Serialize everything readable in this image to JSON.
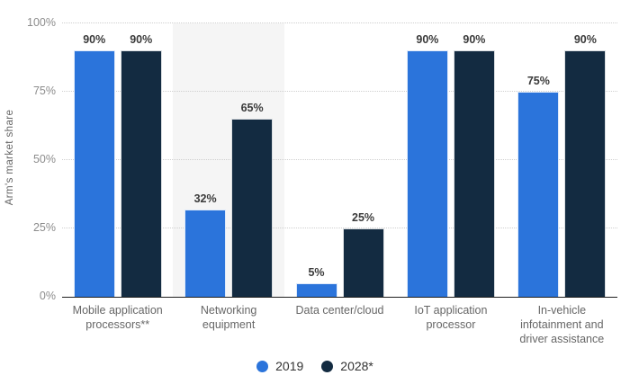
{
  "chart_data": {
    "type": "bar",
    "title": "",
    "ylabel": "Arm's market share",
    "categories": [
      "Mobile application processors**",
      "Networking equipment",
      "Data center/cloud",
      "IoT application processor",
      "In-vehicle infotainment and driver assistance"
    ],
    "series": [
      {
        "name": "2019",
        "color": "#2b74db",
        "values": [
          90,
          32,
          5,
          90,
          75
        ]
      },
      {
        "name": "2028*",
        "color": "#132b41",
        "values": [
          90,
          65,
          25,
          90,
          90
        ]
      }
    ],
    "ylim": [
      0,
      100
    ],
    "yticks": [
      0,
      25,
      50,
      75,
      100
    ],
    "ytick_labels": [
      "0%",
      "25%",
      "50%",
      "75%",
      "100%"
    ],
    "value_label_suffix": "%",
    "grid": "horizontal-dotted",
    "legend_position": "bottom-center",
    "highlight_band_category_index": 1,
    "highlight_band_color": "#f5f5f5"
  },
  "colors": {
    "background": "#ffffff",
    "gridline": "#cfcfcf",
    "axis_line": "#1f1f1f",
    "tick_text": "#8c8c8c",
    "category_text": "#666666",
    "value_text": "#3a3a3a"
  }
}
